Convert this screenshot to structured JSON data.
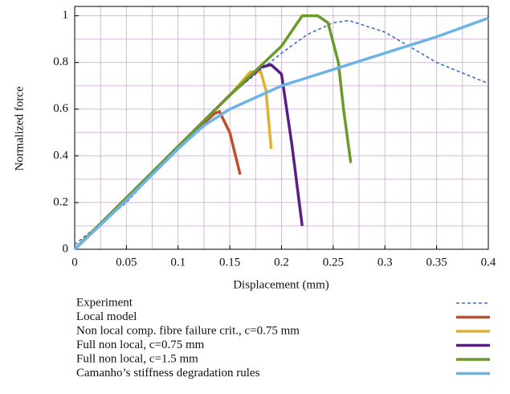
{
  "chart_data": {
    "type": "line",
    "xlabel": "Displacement (mm)",
    "ylabel": "Normalized force",
    "xlim": [
      0,
      0.4
    ],
    "ylim": [
      0,
      1.04
    ],
    "xticks": [
      0,
      0.05,
      0.1,
      0.15,
      0.2,
      0.25,
      0.3,
      0.35,
      0.4
    ],
    "yticks": [
      0,
      0.2,
      0.4,
      0.6,
      0.8,
      1
    ],
    "xminorticks": [
      0.025,
      0.075,
      0.125,
      0.175,
      0.225,
      0.275,
      0.325,
      0.375
    ],
    "yminorticks": [
      0.1,
      0.3,
      0.5,
      0.7,
      0.9
    ],
    "grid": true,
    "grid_color": "#d4b8d8",
    "series": [
      {
        "name": "Experiment",
        "color": "#3f6fc4",
        "dashed": true,
        "x": [
          0,
          0.05,
          0.1,
          0.15,
          0.2,
          0.225,
          0.25,
          0.265,
          0.3,
          0.35,
          0.4
        ],
        "values": [
          0.02,
          0.2,
          0.44,
          0.66,
          0.84,
          0.92,
          0.97,
          0.98,
          0.93,
          0.8,
          0.71
        ]
      },
      {
        "name": "Local model",
        "color": "#c0502a",
        "x": [
          0,
          0.05,
          0.1,
          0.135,
          0.14,
          0.15,
          0.16
        ],
        "values": [
          0,
          0.21,
          0.44,
          0.58,
          0.59,
          0.5,
          0.32
        ]
      },
      {
        "name": "Non local comp. fibre failure crit., c=0.75 mm",
        "color": "#e0b030",
        "x": [
          0,
          0.1,
          0.15,
          0.17,
          0.18,
          0.185,
          0.19
        ],
        "values": [
          0,
          0.44,
          0.66,
          0.76,
          0.76,
          0.68,
          0.43
        ]
      },
      {
        "name": "Full non local, c=0.75 mm",
        "color": "#5a1e82",
        "x": [
          0,
          0.1,
          0.15,
          0.18,
          0.19,
          0.2,
          0.21,
          0.22
        ],
        "values": [
          0,
          0.44,
          0.66,
          0.78,
          0.79,
          0.75,
          0.45,
          0.1
        ]
      },
      {
        "name": "Full non local, c=1.5 mm",
        "color": "#6a9a2a",
        "x": [
          0,
          0.1,
          0.15,
          0.2,
          0.22,
          0.235,
          0.245,
          0.255,
          0.26,
          0.267
        ],
        "values": [
          0,
          0.44,
          0.66,
          0.87,
          1.0,
          1.0,
          0.97,
          0.8,
          0.6,
          0.37
        ]
      },
      {
        "name": "Camanho’s stiffness degradation rules",
        "color": "#6cb4e8",
        "x": [
          0,
          0.05,
          0.1,
          0.125,
          0.15,
          0.2,
          0.25,
          0.3,
          0.35,
          0.4
        ],
        "values": [
          0,
          0.21,
          0.43,
          0.53,
          0.6,
          0.7,
          0.77,
          0.84,
          0.91,
          0.99
        ]
      }
    ]
  }
}
